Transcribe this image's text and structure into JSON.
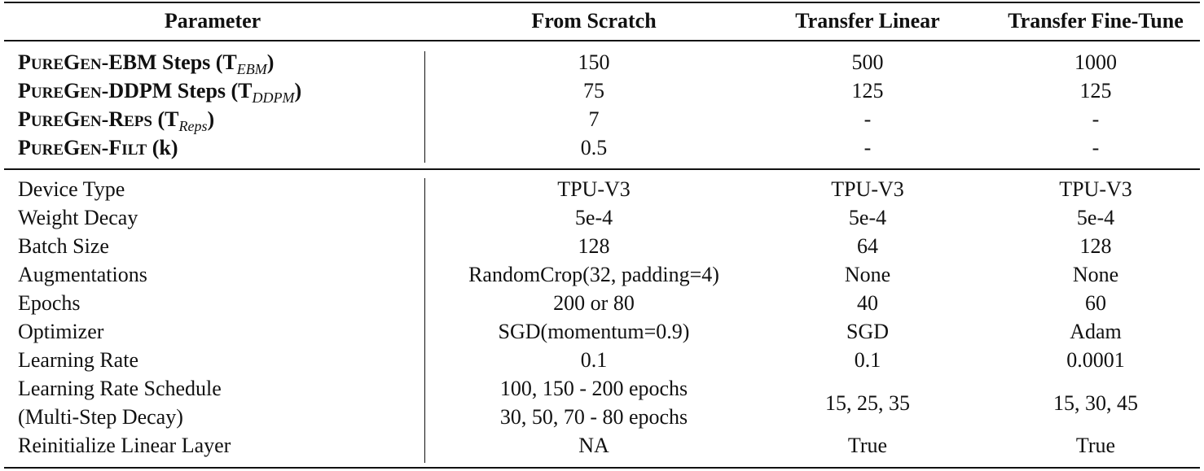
{
  "table": {
    "columns": [
      "Parameter",
      "From Scratch",
      "Transfer Linear",
      "Transfer Fine-Tune"
    ],
    "puregen_rows": [
      {
        "prefix": "P",
        "prefix_small": "URE",
        "g": "G",
        "g_small": "EN",
        "suffix_main": "-EBM Steps (T",
        "subscript": "EBM",
        "close": ")",
        "suffix_caps": "",
        "suffix_small": "",
        "values": [
          "150",
          "500",
          "1000"
        ]
      },
      {
        "prefix": "P",
        "prefix_small": "URE",
        "g": "G",
        "g_small": "EN",
        "suffix_main": "-DDPM Steps (T",
        "subscript": "DDPM",
        "close": ")",
        "suffix_caps": "",
        "suffix_small": "",
        "values": [
          "75",
          "125",
          "125"
        ]
      },
      {
        "prefix": "P",
        "prefix_small": "URE",
        "g": "G",
        "g_small": "EN",
        "suffix_main": "-R",
        "suffix_small": "EPS",
        "suffix_caps": " (T",
        "subscript": "Reps",
        "close": ")",
        "values": [
          "7",
          "-",
          "-"
        ]
      },
      {
        "prefix": "P",
        "prefix_small": "URE",
        "g": "G",
        "g_small": "EN",
        "suffix_main": "-F",
        "suffix_small": "ILT",
        "suffix_caps": " (k)",
        "subscript": "",
        "close": "",
        "values": [
          "0.5",
          "-",
          "-"
        ]
      }
    ],
    "training_rows": [
      {
        "label": "Device Type",
        "values": [
          "TPU-V3",
          "TPU-V3",
          "TPU-V3"
        ]
      },
      {
        "label": "Weight Decay",
        "values": [
          "5e-4",
          "5e-4",
          "5e-4"
        ]
      },
      {
        "label": "Batch Size",
        "values": [
          "128",
          "64",
          "128"
        ]
      },
      {
        "label": "Augmentations",
        "values": [
          "RandomCrop(32, padding=4)",
          "None",
          "None"
        ]
      },
      {
        "label": "Epochs",
        "values": [
          "200 or 80",
          "40",
          "60"
        ]
      },
      {
        "label": "Optimizer",
        "values": [
          "SGD(momentum=0.9)",
          "SGD",
          "Adam"
        ]
      },
      {
        "label": "Learning Rate",
        "values": [
          "0.1",
          "0.1",
          "0.0001"
        ]
      }
    ],
    "schedule_row": {
      "label_line1": "Learning Rate Schedule",
      "label_line2": "(Multi-Step Decay)",
      "scratch_line1": "100, 150 - 200 epochs",
      "scratch_line2": "30, 50, 70 - 80 epochs",
      "linear": "15, 25, 35",
      "finetune": "15, 30, 45"
    },
    "reinit_row": {
      "label": "Reinitialize Linear Layer",
      "values": [
        "NA",
        "True",
        "True"
      ]
    }
  }
}
